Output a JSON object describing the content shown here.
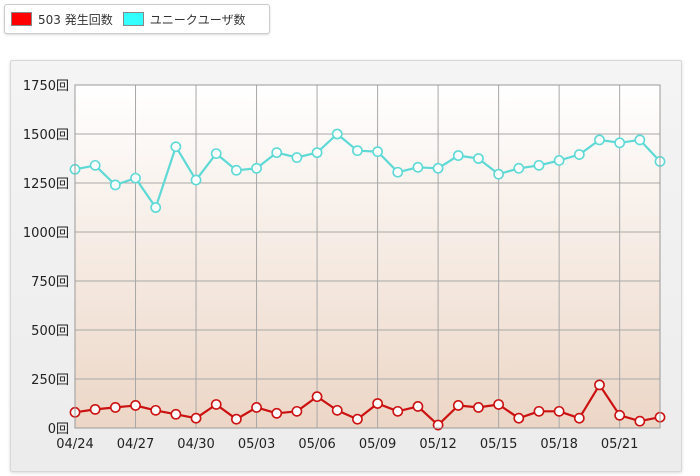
{
  "legend": {
    "items": [
      {
        "label": "503 発生回数",
        "color": "#ff0000"
      },
      {
        "label": "ユニークユーザ数",
        "color": "#33ffff"
      }
    ]
  },
  "chart_data": {
    "type": "line",
    "title": "",
    "xlabel": "",
    "ylabel": "",
    "ylim": [
      0,
      1750
    ],
    "y_ticks": [
      {
        "value": 0,
        "label": "0回"
      },
      {
        "value": 250,
        "label": "250回"
      },
      {
        "value": 500,
        "label": "500回"
      },
      {
        "value": 750,
        "label": "750回"
      },
      {
        "value": 1000,
        "label": "1000回"
      },
      {
        "value": 1250,
        "label": "1250回"
      },
      {
        "value": 1500,
        "label": "1500回"
      },
      {
        "value": 1750,
        "label": "1750回"
      }
    ],
    "x": [
      "04/24",
      "04/25",
      "04/26",
      "04/27",
      "04/28",
      "04/29",
      "04/30",
      "05/01",
      "05/02",
      "05/03",
      "05/04",
      "05/05",
      "05/06",
      "05/07",
      "05/08",
      "05/09",
      "05/10",
      "05/11",
      "05/12",
      "05/13",
      "05/14",
      "05/15",
      "05/16",
      "05/17",
      "05/18",
      "05/19",
      "05/20",
      "05/21",
      "05/22",
      "05/23"
    ],
    "x_tick_labels": [
      "04/24",
      "04/27",
      "04/30",
      "05/03",
      "05/06",
      "05/09",
      "05/12",
      "05/15",
      "05/18",
      "05/21"
    ],
    "grid": true,
    "series": [
      {
        "name": "ユニークユーザ数",
        "color": "#5fd9d6",
        "values": [
          1320,
          1340,
          1240,
          1275,
          1125,
          1435,
          1265,
          1400,
          1315,
          1325,
          1405,
          1380,
          1405,
          1500,
          1415,
          1410,
          1305,
          1330,
          1325,
          1390,
          1375,
          1295,
          1325,
          1340,
          1365,
          1395,
          1470,
          1455,
          1470,
          1360
        ]
      },
      {
        "name": "503 発生回数",
        "color": "#cc1111",
        "values": [
          80,
          95,
          105,
          115,
          90,
          70,
          50,
          120,
          45,
          105,
          75,
          85,
          160,
          90,
          45,
          125,
          85,
          110,
          15,
          115,
          105,
          120,
          50,
          85,
          85,
          50,
          220,
          65,
          35,
          55
        ]
      }
    ]
  }
}
